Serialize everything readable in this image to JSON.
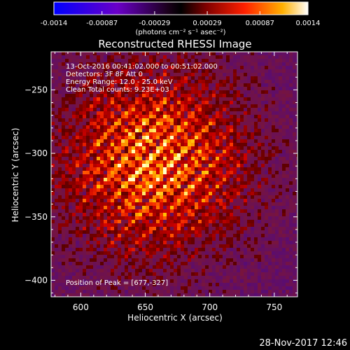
{
  "colorbar": {
    "ticks": [
      "-0.0014",
      "-0.00087",
      "-0.00029",
      "0.00029",
      "0.00087",
      "0.0014"
    ],
    "tick_values": [
      -0.0014,
      -0.00087,
      -0.00029,
      0.00029,
      0.00087,
      0.0014
    ],
    "range": [
      -0.0014,
      0.0014
    ],
    "unit_label": "(photons cm⁻² s⁻¹ asec⁻²)"
  },
  "chart_data": {
    "type": "heatmap",
    "title": "Reconstructed RHESSI Image",
    "xlabel": "Heliocentric X (arcsec)",
    "ylabel": "Heliocentric Y (arcsec)",
    "xlim": [
      577,
      768
    ],
    "ylim": [
      -413,
      -220
    ],
    "xticks": [
      600,
      650,
      700,
      750
    ],
    "yticks": [
      -250,
      -300,
      -350,
      -400
    ],
    "peak": [
      677,
      -327
    ],
    "colormap": "hot-with-blue-negatives"
  },
  "annotations": {
    "time_range": "13-Oct-2016 00:41:02.000 to 00:51:02.000",
    "detectors": "Detectors: 3F 8F  Att 0",
    "energy": "Energy Range: 12.0 - 25.0 keV",
    "clean": "Clean     Total counts: 9.23E+03",
    "peak_label": "Position of Peak = [677,-327]"
  },
  "footer": {
    "date": "28-Nov-2017 12:46"
  }
}
